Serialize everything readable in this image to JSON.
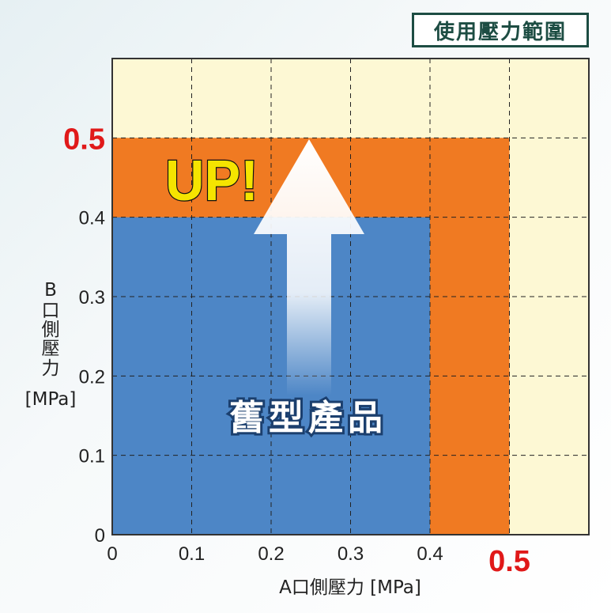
{
  "badge": "使用壓力範圍",
  "chart_data": {
    "type": "area",
    "xlabel": "A口側壓力 [MPa]",
    "ylabel_lines": [
      "B",
      "口",
      "側",
      "壓",
      "力",
      "[MPa]"
    ],
    "xlim": [
      0,
      0.6
    ],
    "ylim": [
      0,
      0.6
    ],
    "x_ticks": [
      "0",
      "0.1",
      "0.2",
      "0.3",
      "0.4"
    ],
    "y_ticks": [
      "0",
      "0.1",
      "0.2",
      "0.3",
      "0.4"
    ],
    "x_highlight_tick": "0.5",
    "y_highlight_tick": "0.5",
    "regions": [
      {
        "name": "舊型產品",
        "x": [
          0,
          0.4
        ],
        "y": [
          0,
          0.4
        ],
        "color": "#4d86c6"
      },
      {
        "name": "",
        "x": [
          0,
          0.5
        ],
        "y": [
          0,
          0.5
        ],
        "color": "#f07a22"
      }
    ],
    "background_color": "#fdf8d4",
    "grid": true,
    "annotations": {
      "up": "UP!",
      "old_product": "舊型產品"
    }
  }
}
